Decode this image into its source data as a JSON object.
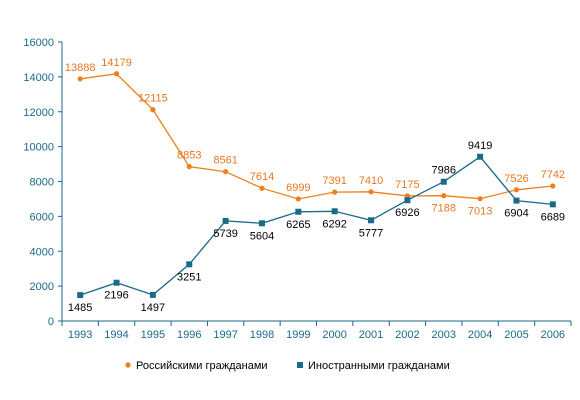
{
  "chart_data": {
    "type": "line",
    "categories": [
      "1993",
      "1994",
      "1995",
      "1996",
      "1997",
      "1998",
      "1999",
      "2000",
      "2001",
      "2002",
      "2003",
      "2004",
      "2005",
      "2006"
    ],
    "series": [
      {
        "name": "Российскими гражданами",
        "color": "#f07f1a",
        "marker": "circle",
        "values": [
          13888,
          14179,
          12115,
          8853,
          8561,
          7614,
          6999,
          7391,
          7410,
          7175,
          7188,
          7013,
          7526,
          7742
        ],
        "labels": [
          "13888",
          "14179",
          "12115",
          "8853",
          "8561",
          "7614",
          "6999",
          "7391",
          "7410",
          "7175",
          "7188",
          "7013",
          "7526",
          "7742"
        ]
      },
      {
        "name": "Иностранными гражданами",
        "color": "#1a6a8a",
        "marker": "square",
        "values": [
          1485,
          2196,
          1497,
          3251,
          5739,
          5604,
          6265,
          6292,
          5777,
          6926,
          7986,
          9419,
          6904,
          6689
        ],
        "labels": [
          "1485",
          "2196",
          "1497",
          "3251",
          "5739",
          "5604",
          "6265",
          "6292",
          "5777",
          "6926",
          "7986",
          "9419",
          "6904",
          "6689"
        ]
      }
    ],
    "y_ticks": [
      "0",
      "2000",
      "4000",
      "6000",
      "8000",
      "10000",
      "12000",
      "14000",
      "16000"
    ],
    "ylim": [
      0,
      16000
    ],
    "grid": false,
    "legend_position": "bottom"
  }
}
